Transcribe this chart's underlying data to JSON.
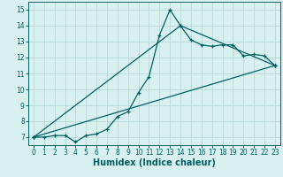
{
  "xlabel": "Humidex (Indice chaleur)",
  "bg_color": "#d8f0f0",
  "grid_color": "#b8dada",
  "line_color": "#006060",
  "xlim": [
    -0.5,
    23.5
  ],
  "ylim": [
    6.5,
    15.5
  ],
  "xticks": [
    0,
    1,
    2,
    3,
    4,
    5,
    6,
    7,
    8,
    9,
    10,
    11,
    12,
    13,
    14,
    15,
    16,
    17,
    18,
    19,
    20,
    21,
    22,
    23
  ],
  "yticks": [
    7,
    8,
    9,
    10,
    11,
    12,
    13,
    14,
    15
  ],
  "series1_x": [
    0,
    1,
    2,
    3,
    4,
    5,
    6,
    7,
    8,
    9,
    10,
    11,
    12,
    13,
    14,
    15,
    16,
    17,
    18,
    19,
    20,
    21,
    22,
    23
  ],
  "series1_y": [
    7.0,
    7.0,
    7.1,
    7.1,
    6.7,
    7.1,
    7.2,
    7.5,
    8.3,
    8.6,
    9.8,
    10.8,
    13.4,
    15.0,
    14.0,
    13.1,
    12.8,
    12.7,
    12.8,
    12.8,
    12.1,
    12.2,
    12.1,
    11.5
  ],
  "series2_x": [
    0,
    23
  ],
  "series2_y": [
    7.0,
    11.5
  ],
  "series3_x": [
    0,
    14,
    23
  ],
  "series3_y": [
    7.0,
    14.0,
    11.5
  ],
  "xlabel_fontsize": 7,
  "tick_fontsize": 5.5
}
